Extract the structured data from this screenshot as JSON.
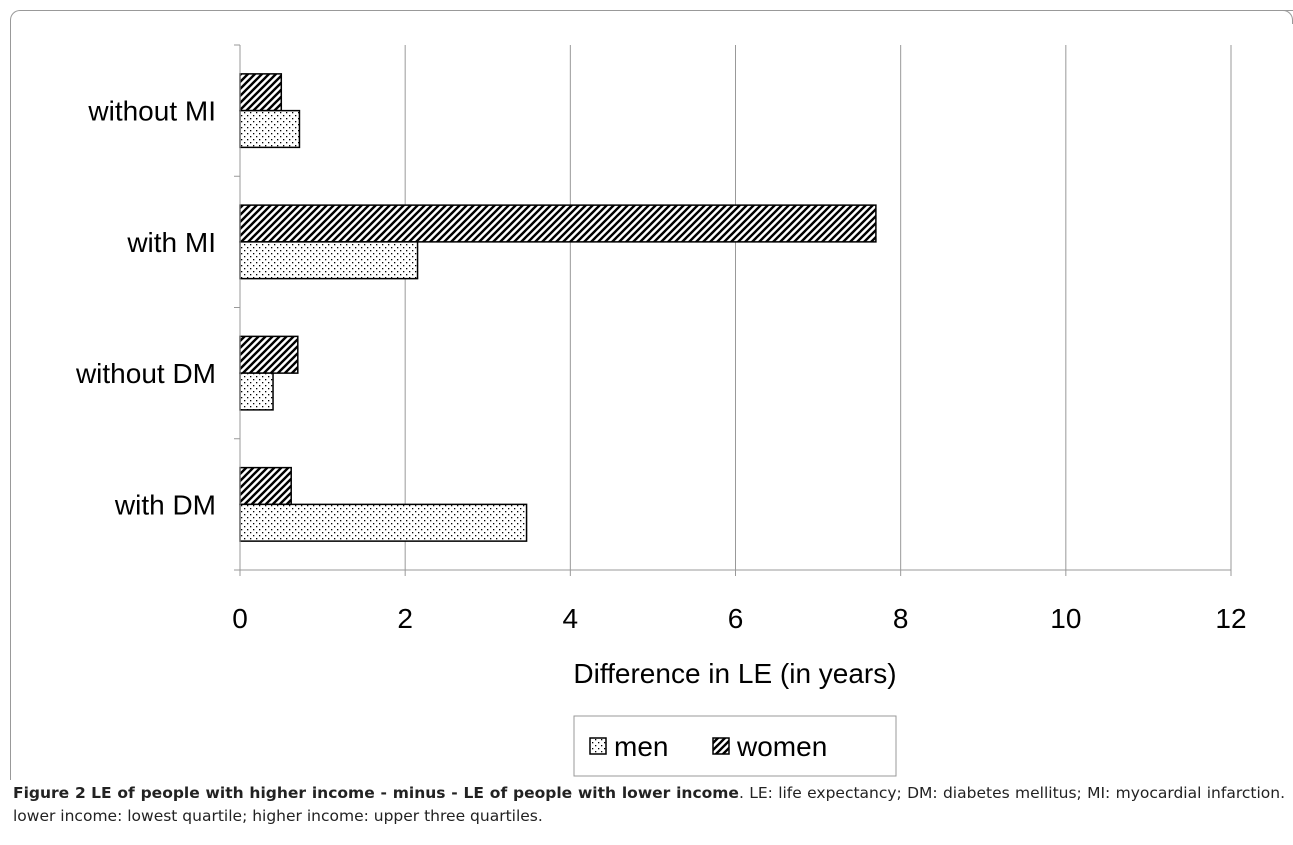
{
  "chart_data": {
    "type": "bar",
    "orientation": "horizontal",
    "categories": [
      "without MI",
      "with MI",
      "without DM",
      "with DM"
    ],
    "series": [
      {
        "name": "men",
        "values": [
          0.72,
          2.15,
          0.4,
          3.47
        ]
      },
      {
        "name": "women",
        "values": [
          0.5,
          7.7,
          0.7,
          0.62
        ]
      }
    ],
    "xlabel": "Difference in LE (in years)",
    "ylabel": "",
    "xlim": [
      0,
      12
    ],
    "xticks": [
      0,
      2,
      4,
      6,
      8,
      10,
      12
    ],
    "xtick_labels": [
      "0",
      "2",
      "4",
      "6",
      "8",
      "10",
      "12"
    ],
    "grid": "vertical",
    "legend": "bottom-center"
  },
  "caption": {
    "label": "Figure 2",
    "title": "LE of people with higher income - minus - LE of people with lower income",
    "text": ". LE: life expectancy; DM: diabetes mellitus; MI: myocardial infarction. lower income: lowest quartile; higher income: upper three quartiles."
  },
  "colors": {
    "bar_stroke": "#000000",
    "grid": "#999999",
    "text": "#000000"
  }
}
